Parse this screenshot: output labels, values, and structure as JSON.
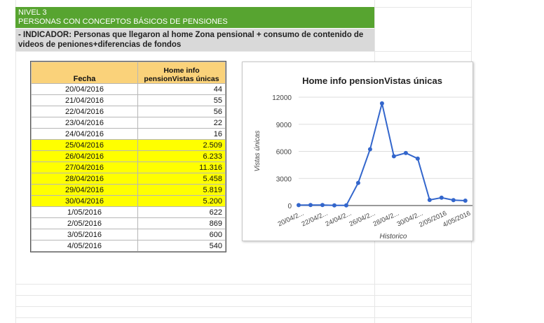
{
  "header": {
    "level": "NIVEL 3",
    "subtitle": "PERSONAS CON CONCEPTOS BÁSICOS DE PENSIONES",
    "indicator_line1": "- INDICADOR: Personas que  llegaron al  home Zona pensional + consumo de contenido de",
    "indicator_line2": "videos de peniones+diferencias de fondos"
  },
  "table": {
    "col_fecha": "Fecha",
    "col_value_line1": "Home info",
    "col_value_line2": "pensionVistas únicas",
    "rows": [
      {
        "fecha": "20/04/2016",
        "valor": "44",
        "highlight": false
      },
      {
        "fecha": "21/04/2016",
        "valor": "55",
        "highlight": false
      },
      {
        "fecha": "22/04/2016",
        "valor": "56",
        "highlight": false
      },
      {
        "fecha": "23/04/2016",
        "valor": "22",
        "highlight": false
      },
      {
        "fecha": "24/04/2016",
        "valor": "16",
        "highlight": false
      },
      {
        "fecha": "25/04/2016",
        "valor": "2.509",
        "highlight": true
      },
      {
        "fecha": "26/04/2016",
        "valor": "6.233",
        "highlight": true
      },
      {
        "fecha": "27/04/2016",
        "valor": "11.316",
        "highlight": true
      },
      {
        "fecha": "28/04/2016",
        "valor": "5.458",
        "highlight": true
      },
      {
        "fecha": "29/04/2016",
        "valor": "5.819",
        "highlight": true
      },
      {
        "fecha": "30/04/2016",
        "valor": "5.200",
        "highlight": true
      },
      {
        "fecha": "1/05/2016",
        "valor": "622",
        "highlight": false
      },
      {
        "fecha": "2/05/2016",
        "valor": "869",
        "highlight": false
      },
      {
        "fecha": "3/05/2016",
        "valor": "600",
        "highlight": false
      },
      {
        "fecha": "4/05/2016",
        "valor": "540",
        "highlight": false
      }
    ]
  },
  "colors": {
    "banner": "#57a430",
    "header_fill": "#fad27a",
    "highlight": "#ffff00",
    "line": "#3366cc"
  },
  "chart_data": {
    "type": "line",
    "title": "Home info pensionVistas únicas",
    "xlabel": "Historico",
    "ylabel": "Vistas únicas",
    "x": [
      "20/04/2016",
      "21/04/2016",
      "22/04/2016",
      "23/04/2016",
      "24/04/2016",
      "25/04/2016",
      "26/04/2016",
      "27/04/2016",
      "28/04/2016",
      "29/04/2016",
      "30/04/2016",
      "1/05/2016",
      "2/05/2016",
      "3/05/2016",
      "4/05/2016"
    ],
    "values": [
      44,
      55,
      56,
      22,
      16,
      2509,
      6233,
      11316,
      5458,
      5819,
      5200,
      622,
      869,
      600,
      540
    ],
    "tick_labels_x": [
      "20/04/2...",
      "22/04/2...",
      "24/04/2...",
      "26/04/2...",
      "28/04/2...",
      "30/04/2...",
      "2/05/2016",
      "4/05/2016"
    ],
    "tick_labels_y": [
      "0",
      "3000",
      "6000",
      "9000",
      "12000"
    ],
    "ylim": [
      0,
      12000
    ],
    "grid": true,
    "legend": "none"
  }
}
